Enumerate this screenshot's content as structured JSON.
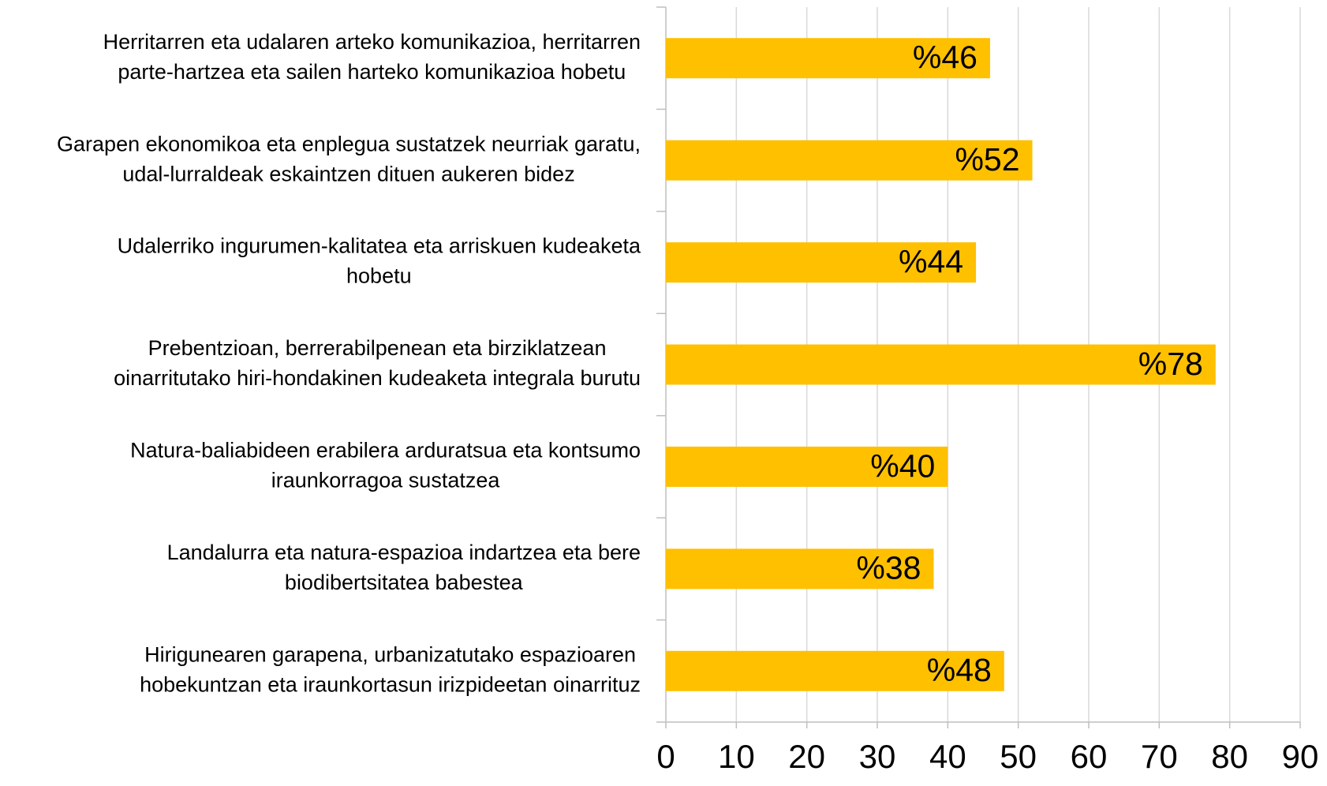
{
  "chart_data": {
    "type": "barh",
    "categories": [
      [
        "Herritarren eta udalaren arteko komunikazioa, herritarren",
        "parte-hartzea eta sailen harteko komunikazioa hobetu"
      ],
      [
        "Garapen ekonomikoa eta enplegua sustatzek neurriak garatu,",
        "udal-lurraldeak eskaintzen dituen aukeren bidez"
      ],
      [
        "Udalerriko ingurumen-kalitatea eta arriskuen kudeaketa",
        "hobetu"
      ],
      [
        "Prebentzioan, berrerabilpenean eta birziklatzean",
        "oinarritutako hiri-hondakinen kudeaketa integrala burutu"
      ],
      [
        "Natura-baliabideen erabilera arduratsua eta kontsumo",
        "iraunkorragoa sustatzea"
      ],
      [
        "Landalurra eta natura-espazioa indartzea eta bere",
        "biodibertsitatea babestea"
      ],
      [
        "Hirigunearen garapena, urbanizatutako espazioaren",
        "hobekuntzan eta iraunkortasun irizpideetan oinarrituz"
      ]
    ],
    "values": [
      46,
      52,
      44,
      78,
      40,
      38,
      48
    ],
    "value_labels": [
      "%46",
      "%52",
      "%44",
      "%78",
      "%40",
      "%38",
      "%48"
    ],
    "color": "#ffc000",
    "xlim": [
      0,
      90
    ],
    "xticks": [
      0,
      10,
      20,
      30,
      40,
      50,
      60,
      70,
      80,
      90
    ],
    "grid": true
  }
}
